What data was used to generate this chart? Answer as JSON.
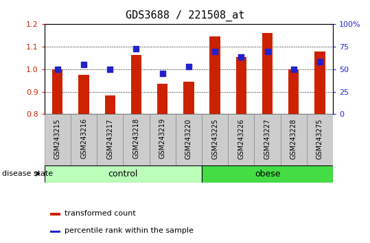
{
  "title": "GDS3688 / 221508_at",
  "samples": [
    "GSM243215",
    "GSM243216",
    "GSM243217",
    "GSM243218",
    "GSM243219",
    "GSM243220",
    "GSM243225",
    "GSM243226",
    "GSM243227",
    "GSM243228",
    "GSM243275"
  ],
  "transformed_count": [
    1.0,
    0.975,
    0.885,
    1.065,
    0.935,
    0.945,
    1.145,
    1.055,
    1.16,
    1.0,
    1.08
  ],
  "percentile_rank": [
    50,
    55,
    50,
    73,
    45,
    53,
    70,
    64,
    70,
    50,
    58
  ],
  "groups": [
    {
      "label": "control",
      "indices": [
        0,
        1,
        2,
        3,
        4,
        5
      ],
      "color": "#bbffbb"
    },
    {
      "label": "obese",
      "indices": [
        6,
        7,
        8,
        9,
        10
      ],
      "color": "#44dd44"
    }
  ],
  "ylim_left": [
    0.8,
    1.2
  ],
  "ylim_right": [
    0,
    100
  ],
  "yticks_left": [
    0.8,
    0.9,
    1.0,
    1.1,
    1.2
  ],
  "yticks_right": [
    0,
    25,
    50,
    75,
    100
  ],
  "bar_color": "#cc2200",
  "dot_color": "#2222cc",
  "bar_width": 0.4,
  "dot_size": 28,
  "grid_color": "#000000",
  "title_fontsize": 11,
  "tick_label_fontsize": 7,
  "axis_label_color_left": "#cc2200",
  "axis_label_color_right": "#2222cc",
  "legend_labels": [
    "transformed count",
    "percentile rank within the sample"
  ],
  "disease_state_label": "disease state",
  "sample_bg_color": "#cccccc"
}
